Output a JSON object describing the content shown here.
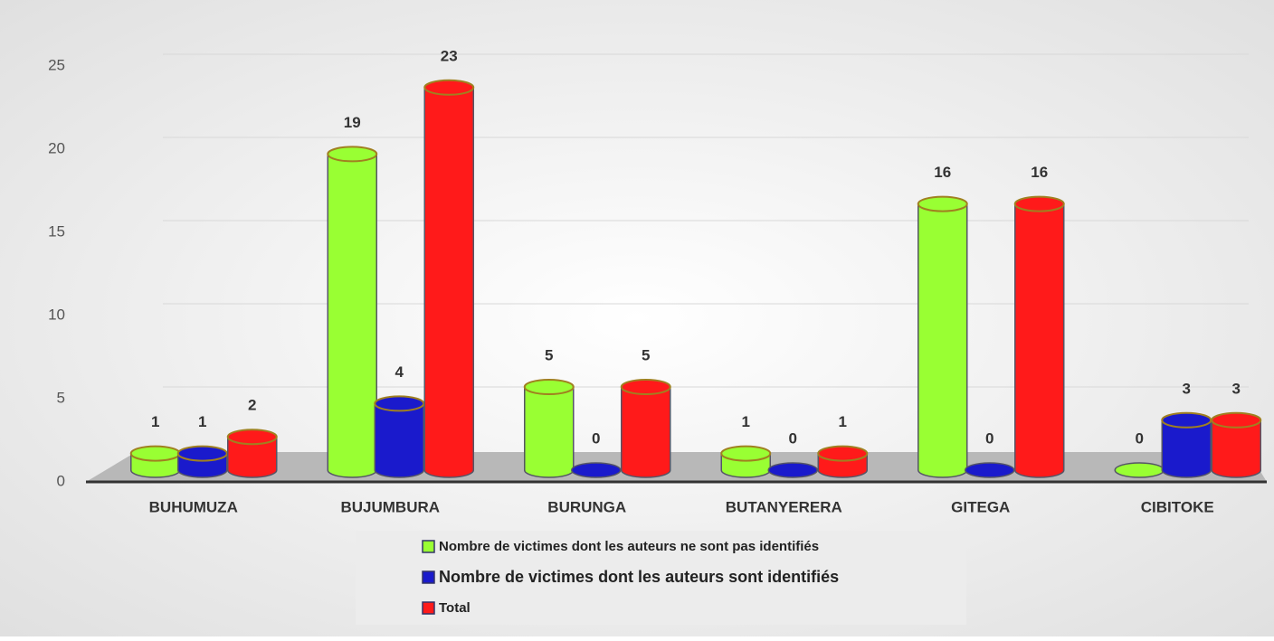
{
  "chart_data": {
    "type": "bar",
    "categories": [
      "BUHUMUZA",
      "BUJUMBURA",
      "BURUNGA",
      "BUTANYERERA",
      "GITEGA",
      "CIBITOKE"
    ],
    "series": [
      {
        "name": "Nombre de victimes dont les auteurs ne sont pas identifiés",
        "color": "#99ff33",
        "values": [
          1,
          19,
          5,
          1,
          16,
          0
        ]
      },
      {
        "name": "Nombre de victimes dont les auteurs sont identifiés",
        "color": "#1a1acc",
        "values": [
          1,
          4,
          0,
          0,
          0,
          3
        ]
      },
      {
        "name": "Total",
        "color": "#ff1a1a",
        "values": [
          2,
          23,
          5,
          1,
          16,
          3
        ]
      }
    ],
    "ylim": [
      0,
      25
    ],
    "yticks": [
      0,
      5,
      10,
      15,
      20,
      25
    ],
    "grid": true
  }
}
